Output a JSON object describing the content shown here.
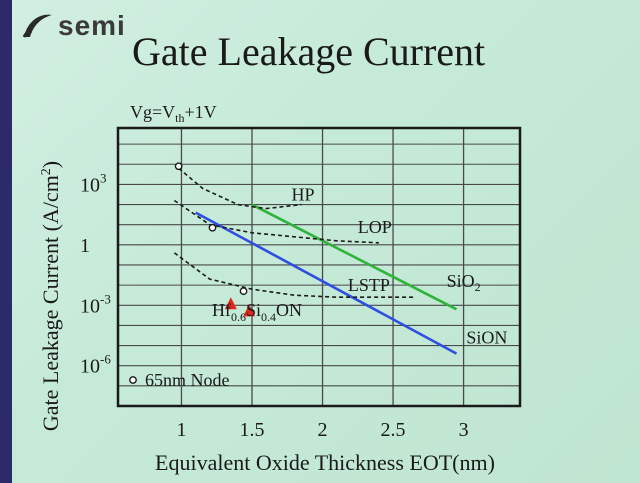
{
  "logo": {
    "text": "semi"
  },
  "chart_data": {
    "type": "line",
    "title": "Gate Leakage Current",
    "condition": "Vg=V",
    "condition_sub": "th",
    "condition_tail": "+1V",
    "xlabel": "Equivalent Oxide Thickness EOT(nm)",
    "ylabel": "Gate Leakage Current (A/cm",
    "ylabel_sup": "2",
    "ylabel_tail": ")",
    "xlim": [
      0.55,
      3.4
    ],
    "ylim": [
      -8.0,
      5.8
    ],
    "y_scale": "log10",
    "grid": true,
    "x_ticks": [
      "1",
      "1.5",
      "2",
      "2.5",
      "3"
    ],
    "x_tick_values": [
      1,
      1.5,
      2,
      2.5,
      3
    ],
    "y_ticks": [
      {
        "base": "10",
        "exp": "3",
        "value": 3
      },
      {
        "base": "1",
        "exp": "",
        "value": 0
      },
      {
        "base": "10",
        "exp": "-3",
        "value": -3
      },
      {
        "base": "10",
        "exp": "-6",
        "value": -6
      }
    ],
    "series": [
      {
        "name": "SiO",
        "sub": "2",
        "color": "#2fb33a",
        "dash": false,
        "x": [
          1.5,
          2.95
        ],
        "y": [
          2.0,
          -3.2
        ],
        "label_at": [
          2.88,
          -2.1
        ]
      },
      {
        "name": "SiON",
        "sub": "",
        "color": "#2f4fe0",
        "dash": false,
        "x": [
          1.1,
          2.95
        ],
        "y": [
          1.6,
          -5.4
        ],
        "label_at": [
          3.02,
          -4.9
        ]
      },
      {
        "name": "HP",
        "sub": "",
        "color": "#1a1a1a",
        "dash": true,
        "x": [
          0.98,
          1.15,
          1.4,
          1.6,
          1.85
        ],
        "y": [
          3.8,
          2.8,
          2.0,
          1.8,
          2.0
        ],
        "label_at": [
          1.78,
          2.2
        ]
      },
      {
        "name": "LOP",
        "sub": "",
        "color": "#1a1a1a",
        "dash": true,
        "x": [
          0.95,
          1.2,
          1.5,
          1.8,
          2.1,
          2.4
        ],
        "y": [
          2.2,
          1.0,
          0.6,
          0.4,
          0.2,
          0.1
        ],
        "label_at": [
          2.25,
          0.6
        ]
      },
      {
        "name": "LSTP",
        "sub": "",
        "color": "#1a1a1a",
        "dash": true,
        "x": [
          0.95,
          1.2,
          1.5,
          1.8,
          2.1,
          2.4,
          2.65
        ],
        "y": [
          -0.4,
          -1.7,
          -2.2,
          -2.5,
          -2.6,
          -2.6,
          -2.6
        ],
        "label_at": [
          2.18,
          -2.3
        ]
      }
    ],
    "node_marker": {
      "label": "65nm Node",
      "points": [
        {
          "x": 0.98,
          "y": 3.9
        },
        {
          "x": 1.22,
          "y": 0.85
        },
        {
          "x": 1.44,
          "y": -2.3
        }
      ]
    },
    "hfsion": {
      "label_parts": [
        "Hf",
        "0.6",
        "Si",
        "0.4",
        "ON"
      ],
      "points": [
        {
          "x": 1.35,
          "y": -2.95
        },
        {
          "x": 1.48,
          "y": -3.3
        }
      ],
      "color": "#e0261b"
    }
  }
}
